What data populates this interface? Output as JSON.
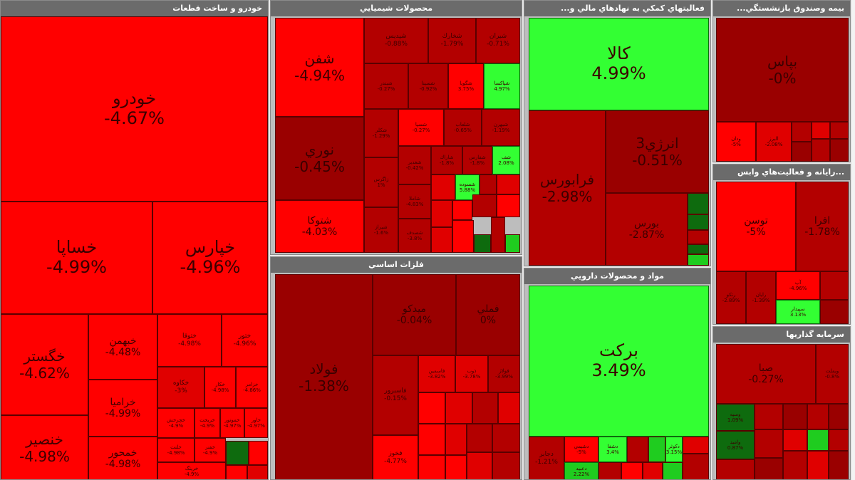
{
  "colors": {
    "red": "#ff0000",
    "red_mid": "#e00000",
    "red_dark": "#b30000",
    "red_darker": "#9a0000",
    "green": "#33ff33",
    "green_mid": "#1fcc1f",
    "green_dark": "#0e6b0e"
  },
  "panels": {
    "auto": {
      "title": "خودرو و ساخت قطعات"
    },
    "chem": {
      "title": "محصولات شيميايي"
    },
    "fin": {
      "title": "فعاليتهاي كمكي به نهادهاي مالي و..."
    },
    "ins": {
      "title": "بيمه وصندوق بازنشستگي..."
    },
    "it": {
      "title": "...رايانه و فعاليت‌هاي وابس"
    },
    "metal": {
      "title": "فلزات اساسي"
    },
    "pharma": {
      "title": "مواد و محصولات دارويي"
    },
    "invest": {
      "title": "سرمايه گذاريها"
    }
  },
  "tiles": {
    "khodro": {
      "name": "خودرو",
      "pct": "-4.67%"
    },
    "khesapa": {
      "name": "خساپا",
      "pct": "-4.99%"
    },
    "khepars": {
      "name": "خپارس",
      "pct": "-4.96%"
    },
    "khegostar": {
      "name": "خگستر",
      "pct": "-4.62%"
    },
    "khanser": {
      "name": "خنصير",
      "pct": "-4.98%"
    },
    "khbahman": {
      "name": "خبهمن",
      "pct": "-4.48%"
    },
    "kheramia": {
      "name": "خراميا",
      "pct": "-4.99%"
    },
    "khmehvar": {
      "name": "خمحور",
      "pct": "-4.98%"
    },
    "khtoka": {
      "name": "ختوقا",
      "pct": "-4.98%"
    },
    "khzar": {
      "name": "ختور",
      "pct": "-4.96%"
    },
    "auto_a": {
      "name": "خكاوه",
      "pct": "-3%"
    },
    "auto_b": {
      "name": "خكار",
      "pct": "-4.98%"
    },
    "auto_c": {
      "name": "خزامر",
      "pct": "-4.86%"
    },
    "auto_d": {
      "name": "خچرخش",
      "pct": "-4.9%"
    },
    "auto_e": {
      "name": "خريخت",
      "pct": "-4.9%"
    },
    "auto_f": {
      "name": "خموتور",
      "pct": "-4.97%"
    },
    "auto_g": {
      "name": "خاور",
      "pct": "-4.97%"
    },
    "auto_h": {
      "name": "خلنت",
      "pct": "-4.98%"
    },
    "auto_i": {
      "name": "خفنر",
      "pct": "-4.9%"
    },
    "auto_j": {
      "name": "خرينگ",
      "pct": "-4.9%"
    },
    "shafan": {
      "name": "شفن",
      "pct": "-4.94%"
    },
    "noori": {
      "name": "نوري",
      "pct": "-0.45%"
    },
    "shetoka": {
      "name": "شتوكا",
      "pct": "-4.03%"
    },
    "shpars": {
      "name": "شپديس",
      "pct": "-0.88%"
    },
    "shkhark": {
      "name": "شخارك",
      "pct": "-1.79%"
    },
    "shiran": {
      "name": "شيران",
      "pct": "-0.71%"
    },
    "shbandar": {
      "name": "شبندر",
      "pct": "-0.27%"
    },
    "shsina": {
      "name": "شسينا",
      "pct": "-0.92%"
    },
    "shgaz": {
      "name": "شگويا",
      "pct": "3.75%"
    },
    "shpaksa": {
      "name": "شپاكسا",
      "pct": "4.97%"
    },
    "shkolor": {
      "name": "شكلر",
      "pct": "-1.29%"
    },
    "shsepa": {
      "name": "شسپا",
      "pct": "-0.27%"
    },
    "shlorab": {
      "name": "شلعاب",
      "pct": "-0.65%"
    },
    "shbahan": {
      "name": "شبهرن",
      "pct": "-1.19%"
    },
    "zagros": {
      "name": "زاگرس",
      "pct": "1%"
    },
    "shekhab": {
      "name": "شغدير",
      "pct": "-0.42%"
    },
    "shbaria": {
      "name": "شاراك",
      "pct": "-1.8%"
    },
    "shpet": {
      "name": "شفارس",
      "pct": "-1.8%"
    },
    "shf": {
      "name": "شف",
      "pct": "2.08%"
    },
    "shsoweda": {
      "name": "شسوده",
      "pct": "5.88%"
    },
    "chem_s1": {
      "name": "شاملا",
      "pct": "-4.83%"
    },
    "chem_s2": {
      "name": "شيراز",
      "pct": "-1.6%"
    },
    "chem_s3": {
      "name": "شصدف",
      "pct": "-3.8%"
    },
    "kala": {
      "name": "كالا",
      "pct": "4.99%"
    },
    "farabourse": {
      "name": "فرابورس",
      "pct": "-2.98%"
    },
    "energy3": {
      "name": "انرژي3",
      "pct": "-0.51%"
    },
    "bourse": {
      "name": "بورس",
      "pct": "-2.87%"
    },
    "bimas": {
      "name": "بپاس",
      "pct": "-0%"
    },
    "ins_a": {
      "name": "ودان",
      "pct": "-5%"
    },
    "ins_b": {
      "name": "البرز",
      "pct": "-2.08%"
    },
    "tosan": {
      "name": "توسن",
      "pct": "-5%"
    },
    "afra": {
      "name": "افرا",
      "pct": "-1.78%"
    },
    "it_a": {
      "name": "رتكو",
      "pct": "-2.89%"
    },
    "it_b": {
      "name": "رايان",
      "pct": "-1.39%"
    },
    "it_c": {
      "name": "آپ",
      "pct": "-4.96%"
    },
    "it_d": {
      "name": "سپيدار",
      "pct": "3.13%"
    },
    "foolad": {
      "name": "فولاد",
      "pct": "-1.38%"
    },
    "mdako": {
      "name": "ميدكو",
      "pct": "-0.04%"
    },
    "fmeli": {
      "name": "فملي",
      "pct": "0%"
    },
    "fasbarvar": {
      "name": "فاسبرور",
      "pct": "-0.15%"
    },
    "fkhooz": {
      "name": "فخوز",
      "pct": "-4.77%"
    },
    "met_a": {
      "name": "فاسمين",
      "pct": "-3.82%"
    },
    "met_b": {
      "name": "ذوب",
      "pct": "-3.78%"
    },
    "met_c": {
      "name": "فولاژ",
      "pct": "-3.99%"
    },
    "barkat": {
      "name": "بركت",
      "pct": "3.49%"
    },
    "ph_a": {
      "name": "دجابر",
      "pct": "-1.21%"
    },
    "ph_b": {
      "name": "دشيمي",
      "pct": "-5%"
    },
    "ph_c": {
      "name": "دشفا",
      "pct": "3.4%"
    },
    "ph_d": {
      "name": "دعبيد",
      "pct": "2.22%"
    },
    "ph_e": {
      "name": "دكوثر",
      "pct": "3.15%"
    },
    "sama": {
      "name": "صبا",
      "pct": "-0.27%"
    },
    "inv_a": {
      "name": "وبملت",
      "pct": "-0.8%"
    },
    "inv_b": {
      "name": "وسپه",
      "pct": "1.09%"
    },
    "inv_c": {
      "name": "واميد",
      "pct": "0.87%"
    }
  }
}
